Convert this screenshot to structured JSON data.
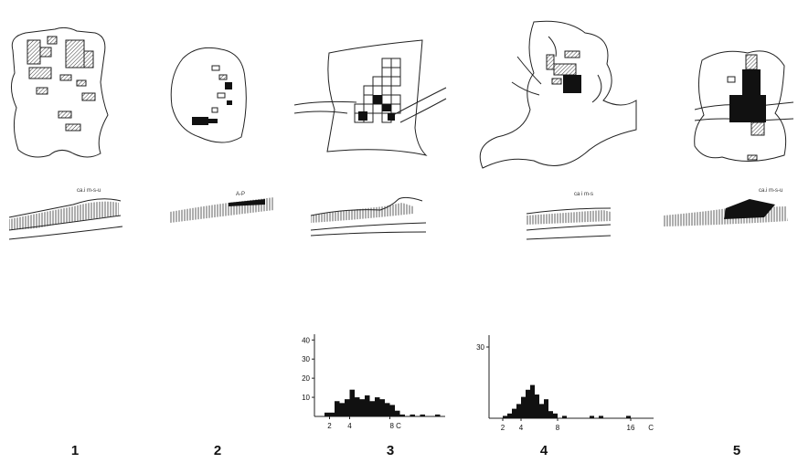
{
  "panels": [
    {
      "label": "1",
      "annotation": "ca.i m-s-u"
    },
    {
      "label": "2",
      "annotation": "A-P"
    },
    {
      "label": "3"
    },
    {
      "label": "4",
      "annotation": "ca i m-s"
    },
    {
      "label": "5",
      "annotation": "ca.i m-s-u"
    }
  ],
  "histograms": [
    {
      "bins": [
        1.5,
        2,
        2.5,
        3,
        3.5,
        4,
        4.5,
        5,
        5.5,
        6,
        6.5,
        7,
        7.5,
        8,
        8.5,
        9,
        9.5,
        10,
        10.5,
        11,
        11.5,
        12,
        12.5,
        13
      ],
      "counts": [
        2,
        2,
        8,
        7,
        9,
        14,
        10,
        9,
        11,
        8,
        10,
        9,
        7,
        6,
        3,
        1,
        0,
        1,
        0,
        1,
        0,
        0,
        1
      ],
      "xlim": [
        0.5,
        13.5
      ],
      "ylim": [
        0,
        43
      ],
      "yticks": [
        10,
        20,
        30,
        40
      ],
      "xticks": [
        2,
        4,
        {
          "value": 8,
          "label": "8 C"
        }
      ]
    },
    {
      "bins": [
        2,
        2.5,
        3,
        3.5,
        4,
        4.5,
        5,
        5.5,
        6,
        6.5,
        7,
        7.5,
        8,
        8.5,
        9,
        9.5,
        10,
        10.5,
        11,
        11.5,
        12,
        12.5,
        13,
        13.5,
        14,
        14.5,
        15,
        15.5,
        16,
        16.5
      ],
      "counts": [
        1,
        2,
        4,
        6,
        9,
        12,
        14,
        10,
        6,
        8,
        3,
        2,
        0,
        1,
        0,
        0,
        0,
        0,
        0,
        1,
        0,
        1,
        0,
        0,
        0,
        0,
        0,
        1,
        0
      ],
      "xlim": [
        0.5,
        18.5
      ],
      "ylim": [
        0,
        35
      ],
      "yticks": [
        30
      ],
      "xticks": [
        2,
        4,
        8,
        16
      ],
      "x_unit": "C"
    }
  ]
}
